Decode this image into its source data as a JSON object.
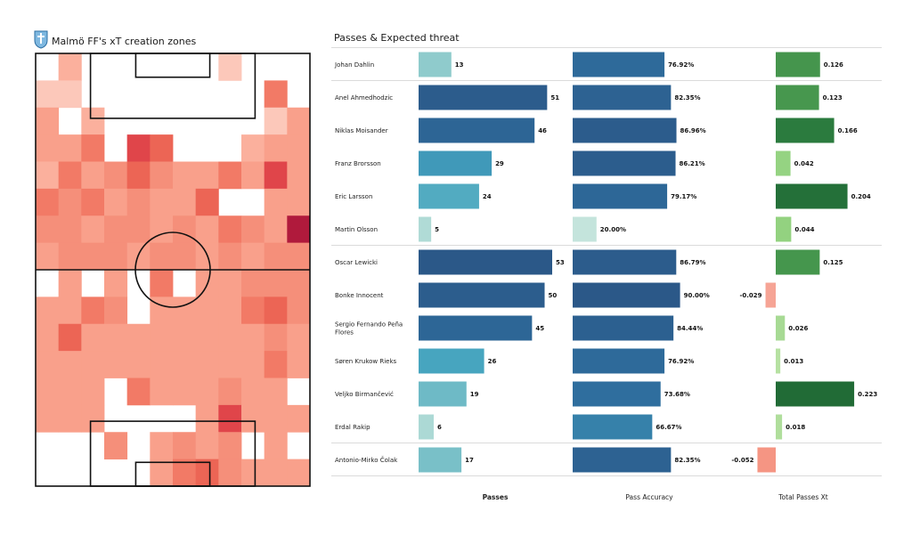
{
  "pitch": {
    "title": "Malmö FF's xT creation zones",
    "heatmap": [
      [
        0,
        3,
        0,
        0,
        0,
        0,
        0,
        0,
        2,
        0,
        0,
        0
      ],
      [
        2,
        2,
        0,
        0,
        0,
        0,
        0,
        0,
        0,
        0,
        6,
        0
      ],
      [
        4,
        0,
        3,
        0,
        0,
        0,
        0,
        0,
        0,
        0,
        2,
        4
      ],
      [
        4,
        4,
        6,
        0,
        8,
        7,
        0,
        0,
        0,
        3,
        4,
        4
      ],
      [
        3,
        6,
        4,
        5,
        7,
        5,
        4,
        4,
        6,
        4,
        8,
        4
      ],
      [
        6,
        5,
        6,
        4,
        5,
        4,
        4,
        7,
        0,
        0,
        4,
        4
      ],
      [
        5,
        5,
        4,
        5,
        5,
        4,
        5,
        4,
        6,
        5,
        4,
        10
      ],
      [
        4,
        5,
        5,
        5,
        4,
        5,
        5,
        4,
        5,
        4,
        5,
        5
      ],
      [
        0,
        4,
        0,
        4,
        0,
        6,
        0,
        4,
        4,
        5,
        5,
        5
      ],
      [
        4,
        4,
        6,
        5,
        0,
        4,
        4,
        4,
        4,
        6,
        7,
        5
      ],
      [
        4,
        7,
        4,
        4,
        4,
        4,
        4,
        4,
        4,
        4,
        5,
        4
      ],
      [
        4,
        4,
        4,
        4,
        4,
        4,
        4,
        4,
        4,
        4,
        6,
        4
      ],
      [
        4,
        4,
        4,
        0,
        6,
        4,
        4,
        4,
        5,
        4,
        4,
        0
      ],
      [
        4,
        4,
        4,
        0,
        0,
        0,
        0,
        4,
        8,
        4,
        4,
        4
      ],
      [
        0,
        0,
        0,
        5,
        0,
        4,
        5,
        4,
        5,
        0,
        4,
        0
      ],
      [
        0,
        0,
        0,
        0,
        0,
        4,
        6,
        7,
        5,
        4,
        4,
        4
      ]
    ]
  },
  "table": {
    "title": "Passes & Expected threat",
    "col_headers": [
      "Passes",
      "Pass Accuracy",
      "Total Passes Xt"
    ]
  },
  "chart_data": {
    "type": "bar",
    "categories": [
      "Johan Dahlin",
      "Anel Ahmedhodzic",
      "Niklas Moisander",
      "Franz Brorsson",
      "Eric Larsson",
      "Martin Olsson",
      "Oscar Lewicki",
      "Bonke Innocent",
      "Sergio Fernando Peña Flores",
      "Søren  Krukow Rieks",
      "Veljko Birmančević",
      "Erdal Rakip",
      "Antonio-Mirko Čolak"
    ],
    "series": [
      {
        "name": "Passes",
        "values": [
          13,
          51,
          46,
          29,
          24,
          5,
          53,
          50,
          45,
          26,
          19,
          6,
          17
        ]
      },
      {
        "name": "Pass Accuracy",
        "values": [
          76.92,
          82.35,
          86.96,
          86.21,
          79.17,
          20.0,
          86.79,
          90.0,
          84.44,
          76.92,
          73.68,
          66.67,
          82.35
        ]
      },
      {
        "name": "Total Passes Xt",
        "values": [
          0.126,
          0.123,
          0.166,
          0.042,
          0.204,
          0.044,
          0.125,
          -0.029,
          0.026,
          0.013,
          0.223,
          0.018,
          -0.052
        ]
      }
    ],
    "labels": {
      "passes": [
        "13",
        "51",
        "46",
        "29",
        "24",
        "5",
        "53",
        "50",
        "45",
        "26",
        "19",
        "6",
        "17"
      ],
      "accuracy": [
        "76.92%",
        "82.35%",
        "86.96%",
        "86.21%",
        "79.17%",
        "20.00%",
        "86.79%",
        "90.00%",
        "84.44%",
        "76.92%",
        "73.68%",
        "66.67%",
        "82.35%"
      ],
      "xt": [
        "0.126",
        "0.123",
        "0.166",
        "0.042",
        "0.204",
        "0.044",
        "0.125",
        "-0.029",
        "0.026",
        "0.013",
        "0.223",
        "0.018",
        "-0.052"
      ]
    },
    "group_breaks_after": [
      0,
      5,
      11
    ]
  }
}
